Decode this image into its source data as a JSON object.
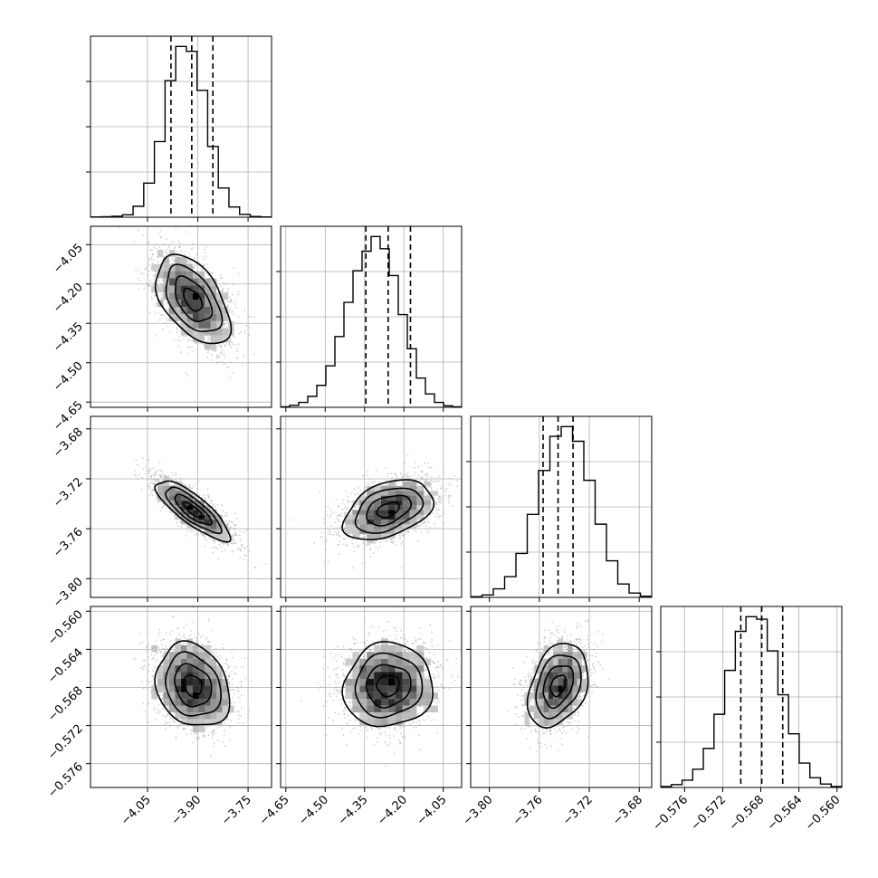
{
  "chart_data": {
    "type": "corner",
    "panels_per_side": 4,
    "grid": true,
    "parameters": [
      {
        "index": 0,
        "range": [
          -4.22,
          -3.68
        ],
        "ticks": [
          -4.05,
          -3.9,
          -3.75
        ],
        "tick_labels": [
          "−4.05",
          "−3.90",
          "−3.75"
        ],
        "quantiles": [
          -3.98,
          -3.918,
          -3.855
        ],
        "hist": [
          1,
          2,
          4,
          10,
          45,
          140,
          310,
          560,
          700,
          680,
          520,
          290,
          120,
          42,
          12,
          3,
          1
        ],
        "mean": -3.915,
        "std": 0.055
      },
      {
        "index": 1,
        "range": [
          -4.67,
          -3.98
        ],
        "ticks": [
          -4.65,
          -4.5,
          -4.35,
          -4.2,
          -4.05
        ],
        "tick_labels": [
          "−4.65",
          "−4.50",
          "−4.35",
          "−4.20",
          "−4.05"
        ],
        "quantiles": [
          -4.345,
          -4.26,
          -4.175
        ],
        "hist": [
          2,
          8,
          20,
          45,
          90,
          170,
          290,
          430,
          560,
          640,
          700,
          650,
          540,
          380,
          240,
          120,
          55,
          20,
          6,
          2
        ],
        "mean": -4.26,
        "std": 0.085
      },
      {
        "index": 2,
        "range": [
          -3.815,
          -3.67
        ],
        "ticks": [
          -3.8,
          -3.76,
          -3.72,
          -3.68
        ],
        "tick_labels": [
          "−3.80",
          "−3.76",
          "−3.72",
          "−3.68"
        ],
        "quantiles": [
          -3.757,
          -3.745,
          -3.733
        ],
        "hist": [
          3,
          10,
          35,
          85,
          180,
          340,
          520,
          660,
          700,
          640,
          480,
          300,
          150,
          55,
          18,
          5
        ],
        "mean": -3.745,
        "std": 0.012
      },
      {
        "index": 3,
        "range": [
          -0.5785,
          -0.5595
        ],
        "ticks": [
          -0.576,
          -0.572,
          -0.568,
          -0.564,
          -0.56
        ],
        "tick_labels": [
          "−0.576",
          "−0.572",
          "−0.568",
          "−0.564",
          "−0.560"
        ],
        "quantiles": [
          -0.5701,
          -0.5679,
          -0.5657
        ],
        "hist": [
          4,
          12,
          30,
          75,
          160,
          300,
          480,
          640,
          700,
          690,
          560,
          380,
          220,
          100,
          40,
          14,
          4
        ],
        "mean": -0.5678,
        "std": 0.0022
      }
    ],
    "correlations": [
      {
        "row": 1,
        "col": 0,
        "r": -0.5
      },
      {
        "row": 2,
        "col": 0,
        "r": -0.82
      },
      {
        "row": 2,
        "col": 1,
        "r": 0.4
      },
      {
        "row": 3,
        "col": 0,
        "r": -0.2
      },
      {
        "row": 3,
        "col": 1,
        "r": 0.05
      },
      {
        "row": 3,
        "col": 2,
        "r": 0.32
      }
    ],
    "contour_levels_sigma": [
      0.5,
      1.0,
      1.5,
      2.0
    ]
  }
}
